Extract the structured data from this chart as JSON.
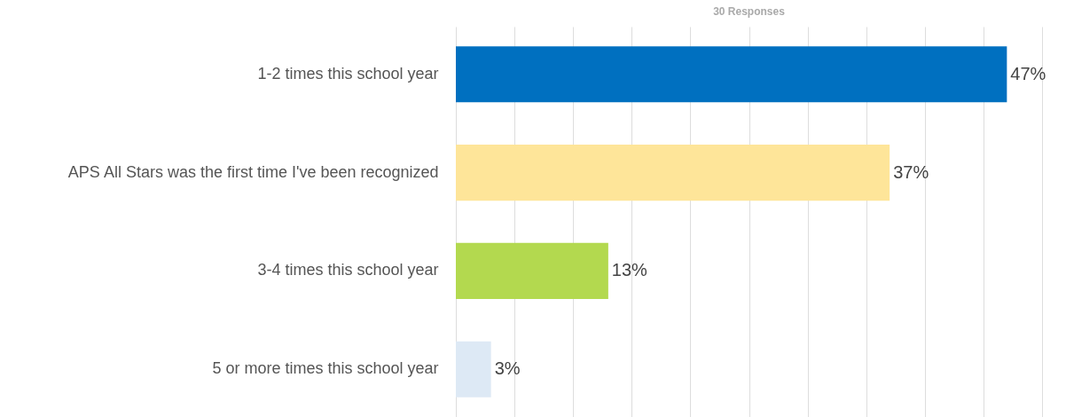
{
  "chart_data": {
    "type": "bar",
    "orientation": "horizontal",
    "title": "30 Responses",
    "categories": [
      "1-2 times this school year",
      "APS All Stars was the first time I've been recognized",
      "3-4 times this school year",
      "5 or more times this school year"
    ],
    "values": [
      47,
      37,
      13,
      3
    ],
    "colors": [
      "#0070c0",
      "#fee599",
      "#b3d94f",
      "#dde9f5"
    ],
    "value_labels": [
      "47%",
      "37%",
      "13%",
      "3%"
    ],
    "xlim": [
      0,
      50
    ],
    "xticks": [
      {
        "value": 0,
        "label": null
      },
      {
        "value": 5,
        "label": null
      },
      {
        "value": 10,
        "label": null
      },
      {
        "value": 15,
        "label": null
      },
      {
        "value": 20,
        "label": null
      },
      {
        "value": 25,
        "label": null
      },
      {
        "value": 30,
        "label": null
      },
      {
        "value": 35,
        "label": null
      },
      {
        "value": 40,
        "label": null
      },
      {
        "value": 45,
        "label": null
      },
      {
        "value": 50,
        "label": null
      }
    ],
    "grid": "x",
    "tick_labels": "y"
  }
}
